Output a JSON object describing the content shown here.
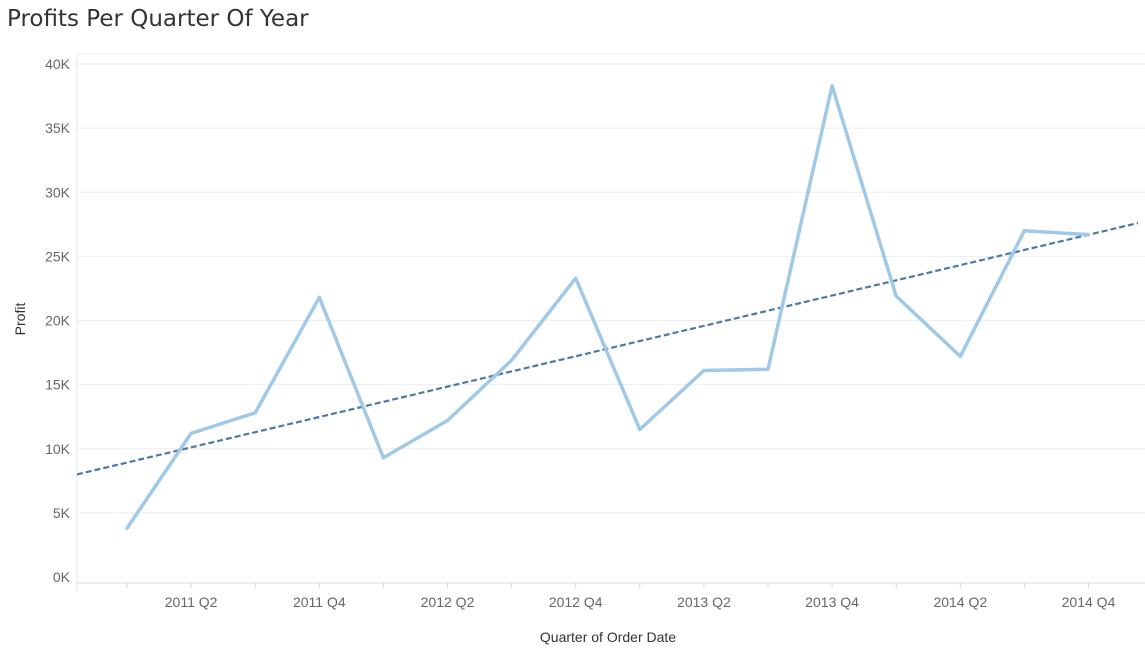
{
  "chart_data": {
    "type": "line",
    "title": "Profits Per Quarter Of Year",
    "xlabel": "Quarter of Order Date",
    "ylabel": "Profit",
    "x_tick_labels": [
      "2011 Q2",
      "2011 Q4",
      "2012 Q2",
      "2012 Q4",
      "2013 Q2",
      "2013 Q4",
      "2014 Q2",
      "2014 Q4"
    ],
    "y_tick_labels": [
      "0K",
      "5K",
      "10K",
      "15K",
      "20K",
      "25K",
      "30K",
      "35K",
      "40K"
    ],
    "ylim": [
      0,
      40000
    ],
    "grid": true,
    "categories": [
      "2011 Q1",
      "2011 Q2",
      "2011 Q3",
      "2011 Q4",
      "2012 Q1",
      "2012 Q2",
      "2012 Q3",
      "2012 Q4",
      "2013 Q1",
      "2013 Q2",
      "2013 Q3",
      "2013 Q4",
      "2014 Q1",
      "2014 Q2",
      "2014 Q3",
      "2014 Q4"
    ],
    "series": [
      {
        "values": [
          3800,
          11200,
          12800,
          21800,
          9300,
          12200,
          16900,
          23300,
          11500,
          16100,
          16200,
          38300,
          21900,
          17200,
          27000,
          26700
        ],
        "color": "#9fc9e6"
      }
    ],
    "trend_line": {
      "style": "dashed",
      "color": "#4e79a7",
      "start_value": 8000,
      "end_value": 27600
    }
  }
}
